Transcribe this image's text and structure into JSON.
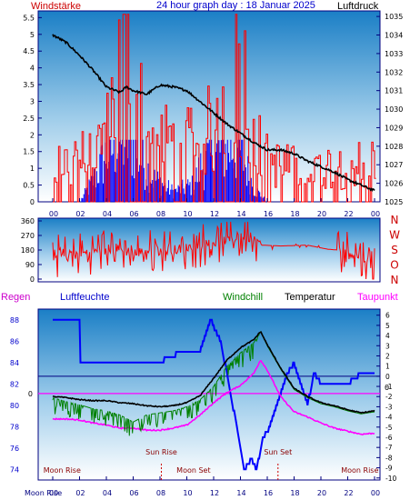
{
  "header": {
    "left_label": "Windstärke",
    "title": "24 hour graph day : 18 Januar 2025",
    "right_label": "Luftdruck"
  },
  "mid_header": {
    "regen": "Regen",
    "luftfeuchte": "Luftfeuchte",
    "windchill": "Windchill",
    "temperatur": "Temperatur",
    "taupunkt": "Taupunkt"
  },
  "colors": {
    "wind": "#ff0000",
    "gust": "#0000ff",
    "pressure": "#000000",
    "humidity": "#0000ff",
    "temperature": "#000000",
    "windchill": "#008000",
    "dewpoint": "#ff00ff",
    "frame": "#000080",
    "sky_top": "#1b7fc6",
    "sky_bottom": "#ffffff"
  },
  "chart_data": [
    {
      "id": "wind-pressure",
      "type": "line",
      "x_ticks": [
        "00",
        "02",
        "04",
        "06",
        "08",
        "10",
        "12",
        "14",
        "16",
        "18",
        "20",
        "22",
        "00"
      ],
      "y_left": {
        "label": "Windstärke",
        "ticks": [
          0,
          0.5,
          1,
          1.5,
          2,
          2.5,
          3,
          3.5,
          4,
          4.5,
          5,
          5.5
        ],
        "lim": [
          0,
          5.7
        ]
      },
      "y_right": {
        "label": "Luftdruck",
        "ticks": [
          1025,
          1026,
          1027,
          1028,
          1029,
          1030,
          1031,
          1032,
          1033,
          1034,
          1035
        ],
        "lim": [
          1025,
          1035.3
        ]
      },
      "series": [
        {
          "name": "Luftdruck",
          "x": [
            0,
            1,
            2,
            3,
            4,
            5,
            5.5,
            6,
            7,
            8,
            9,
            10,
            11,
            12,
            13,
            14,
            15,
            16,
            17,
            18,
            19,
            20,
            21,
            22,
            23,
            24
          ],
          "values": [
            1034.0,
            1033.6,
            1032.9,
            1032.1,
            1031.2,
            1030.9,
            1031.2,
            1031.0,
            1030.8,
            1031.3,
            1031.2,
            1031.0,
            1030.4,
            1029.8,
            1029.2,
            1028.7,
            1028.2,
            1027.8,
            1027.8,
            1027.6,
            1027.2,
            1026.9,
            1026.6,
            1026.2,
            1025.9,
            1025.6
          ]
        },
        {
          "name": "Windstärke",
          "x": [
            0,
            1.5,
            3,
            4.5,
            5.5,
            6,
            7,
            9,
            10.5,
            12,
            13,
            14,
            14.8,
            15.5,
            17,
            19,
            20.5,
            22,
            23.5,
            24
          ],
          "values": [
            0.7,
            1.2,
            1.0,
            2.5,
            4.3,
            3.0,
            1.6,
            1.5,
            1.4,
            1.9,
            3.0,
            3.2,
            2.6,
            1.1,
            0.9,
            0.8,
            0.9,
            0.9,
            1.0,
            1.1
          ]
        },
        {
          "name": "Böen",
          "x": [
            0,
            2,
            3,
            4,
            4.5,
            5,
            5.5,
            6,
            6.5,
            7.5,
            9,
            10.5,
            11,
            12,
            13,
            14,
            15,
            16,
            18,
            24
          ],
          "values": [
            0,
            0,
            0.6,
            1.4,
            1.6,
            1.8,
            1.8,
            1.7,
            1.3,
            0.7,
            0.3,
            0.5,
            1.0,
            1.4,
            1.6,
            1.5,
            0.4,
            0,
            0,
            0
          ]
        }
      ]
    },
    {
      "id": "wind-direction",
      "type": "line",
      "x_ticks": [
        "00",
        "02",
        "04",
        "06",
        "08",
        "10",
        "12",
        "14",
        "16",
        "18",
        "20",
        "22",
        "00"
      ],
      "y_left": {
        "ticks": [
          0,
          90,
          180,
          270,
          360
        ],
        "lim": [
          0,
          360
        ]
      },
      "y_right": {
        "ticks": [
          "N",
          "W",
          "S",
          "O",
          "N"
        ]
      },
      "series": [
        {
          "name": "Windrichtung",
          "x": [
            0,
            1.5,
            3,
            4.5,
            6,
            7.5,
            9,
            10.5,
            12,
            13.5,
            14.5,
            15.2,
            15.6,
            17,
            19,
            20.5,
            22,
            23,
            24
          ],
          "values": [
            140,
            150,
            170,
            190,
            165,
            175,
            180,
            200,
            230,
            250,
            260,
            250,
            210,
            205,
            210,
            185,
            175,
            130,
            95
          ]
        }
      ]
    },
    {
      "id": "temp-humidity",
      "type": "line",
      "x_ticks": [
        "00",
        "02",
        "04",
        "06",
        "08",
        "10",
        "12",
        "14",
        "16",
        "18",
        "20",
        "22",
        "00"
      ],
      "y_left": {
        "label": "Luftfeuchte",
        "ticks": [
          74,
          76,
          78,
          80,
          82,
          84,
          86,
          88
        ],
        "lim": [
          73,
          89
        ]
      },
      "y_right": {
        "label": "Temperatur",
        "ticks": [
          -10,
          -9,
          -8,
          -7,
          -6,
          -5,
          -4,
          -3,
          -2,
          -1,
          0,
          1,
          2,
          3,
          4,
          5,
          6
        ],
        "lim": [
          -10.2,
          6.6
        ]
      },
      "series": [
        {
          "name": "Luftfeuchte",
          "x": [
            0,
            2,
            2.01,
            4,
            6,
            8,
            8.6,
            9.8,
            10,
            11,
            11.8,
            12.5,
            13,
            14,
            14.3,
            14.8,
            15.2,
            15.7,
            16.2,
            17,
            17.5,
            18,
            19,
            19.5,
            20,
            21,
            22,
            23,
            24
          ],
          "values": [
            88,
            88,
            84,
            84,
            84,
            84,
            84.5,
            85,
            85,
            85,
            88,
            86,
            83,
            76,
            74,
            75,
            74,
            77,
            78,
            81,
            83,
            84,
            80,
            83,
            82,
            82,
            82,
            83,
            83
          ]
        },
        {
          "name": "Temperatur",
          "x": [
            0,
            1,
            2,
            3,
            4,
            5,
            6,
            7,
            8,
            9,
            10,
            11,
            12,
            13,
            14,
            15,
            15.5,
            16,
            17,
            18,
            19,
            20,
            21,
            22,
            23,
            24
          ],
          "values": [
            -2.0,
            -2.1,
            -2.3,
            -2.4,
            -2.4,
            -2.6,
            -2.7,
            -2.9,
            -3.0,
            -2.9,
            -2.6,
            -1.9,
            -0.2,
            1.6,
            2.8,
            3.6,
            4.4,
            3.1,
            0.8,
            -1.2,
            -2.0,
            -2.6,
            -2.9,
            -3.3,
            -3.6,
            -3.4
          ]
        },
        {
          "name": "Windchill",
          "x": [
            0,
            1,
            2,
            3,
            4,
            5,
            6,
            7,
            8,
            9,
            10,
            11,
            12,
            13,
            14,
            15,
            15.5,
            16,
            17,
            18,
            19,
            20,
            21,
            22,
            23,
            24
          ],
          "values": [
            -2.1,
            -2.5,
            -2.8,
            -3.2,
            -3.4,
            -3.8,
            -4.5,
            -3.8,
            -3.6,
            -3.4,
            -3.0,
            -2.3,
            -1.0,
            1.0,
            2.3,
            3.3,
            4.4,
            3.0,
            0.7,
            -1.3,
            -2.1,
            -2.7,
            -3.0,
            -3.4,
            -3.7,
            -3.5
          ]
        },
        {
          "name": "Taupunkt",
          "x": [
            0,
            1,
            2,
            3,
            4,
            5,
            6,
            7,
            8,
            9,
            10,
            11,
            12,
            13,
            14,
            15,
            15.5,
            16,
            17,
            18,
            19,
            20,
            21,
            22,
            23,
            24
          ],
          "values": [
            -4.2,
            -4.2,
            -4.3,
            -4.6,
            -4.8,
            -5.1,
            -5.1,
            -5.3,
            -5.3,
            -5.1,
            -4.8,
            -3.8,
            -2.6,
            -1.6,
            -0.9,
            0.3,
            1.6,
            0.6,
            -2.0,
            -3.5,
            -4.0,
            -4.6,
            -5.1,
            -5.4,
            -5.7,
            -5.6
          ]
        }
      ],
      "annotations": [
        {
          "label": "Moon Rise",
          "x": 0.7,
          "row": "upper"
        },
        {
          "label": "Sun Rise",
          "x": 8.1,
          "row": "lower"
        },
        {
          "label": "Moon Set",
          "x": 10.5,
          "row": "upper"
        },
        {
          "label": "Sun Set",
          "x": 16.8,
          "row": "lower"
        },
        {
          "label": "Moon Rise",
          "x": 22.9,
          "row": "upper"
        }
      ],
      "bottom_label": "Moon Rise",
      "reference_values": {
        "left": "0",
        "right": "0"
      }
    }
  ]
}
